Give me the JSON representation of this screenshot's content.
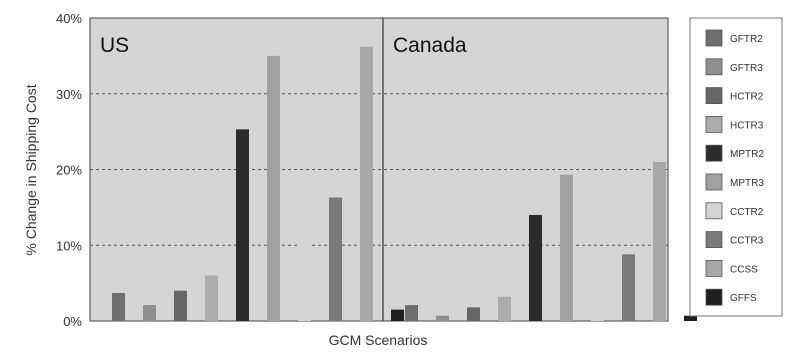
{
  "chart_data": {
    "type": "bar",
    "xlabel": "GCM Scenarios",
    "ylabel": "% Change in Shipping Cost",
    "ylim": [
      0,
      40
    ],
    "yticks": [
      0,
      10,
      20,
      30,
      40
    ],
    "ytick_labels": [
      "0%",
      "10%",
      "20%",
      "30%",
      "40%"
    ],
    "grid": "dashed horizontal at 10%, 20%, 30%",
    "legend_position": "right",
    "panels": [
      {
        "label": "US",
        "values": [
          3.7,
          2.1,
          4.0,
          6.0,
          25.3,
          35.0,
          12.3,
          16.3,
          36.2,
          1.5
        ]
      },
      {
        "label": "Canada",
        "values": [
          2.1,
          0.7,
          1.8,
          3.2,
          14.0,
          19.3,
          6.3,
          8.8,
          21.0,
          0.7
        ]
      }
    ],
    "series": [
      {
        "name": "GFTR2",
        "color": "#6e6e6e"
      },
      {
        "name": "GFTR3",
        "color": "#8f8f8f"
      },
      {
        "name": "HCTR2",
        "color": "#666666"
      },
      {
        "name": "HCTR3",
        "color": "#acacac"
      },
      {
        "name": "MPTR2",
        "color": "#2c2c2c"
      },
      {
        "name": "MPTR3",
        "color": "#a1a1a1"
      },
      {
        "name": "CCTR2",
        "color": "#d4d4d4"
      },
      {
        "name": "CCTR3",
        "color": "#7a7a7a"
      },
      {
        "name": "CCSS",
        "color": "#a8a8a8"
      },
      {
        "name": "GFFS",
        "color": "#1e1e1e"
      }
    ]
  },
  "colors": {
    "plot_background": "#d5d5d5",
    "gridline": "#555555"
  }
}
